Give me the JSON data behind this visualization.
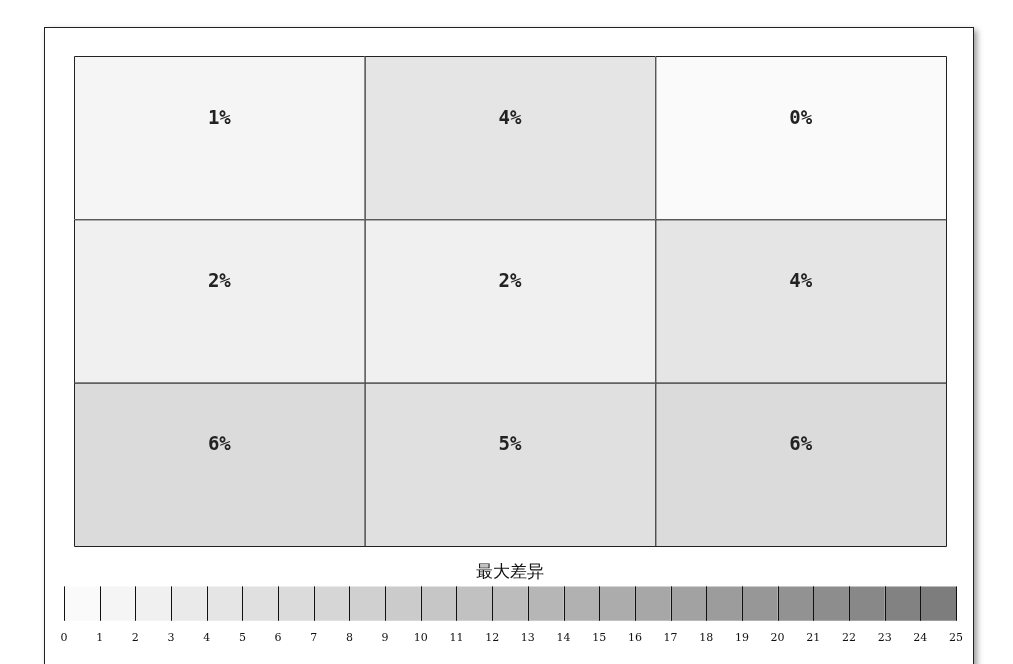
{
  "chart_data": {
    "type": "heatmap",
    "clabel": "最大差异",
    "categories": [
      null,
      null,
      null
    ],
    "y_categories": [
      null,
      null,
      null
    ],
    "cells": [
      [
        1,
        4,
        0
      ],
      [
        2,
        2,
        4
      ],
      [
        6,
        5,
        6
      ]
    ],
    "cell_labels": [
      [
        "1%",
        "4%",
        "0%"
      ],
      [
        "2%",
        "2%",
        "4%"
      ],
      [
        "6%",
        "5%",
        "6%"
      ]
    ],
    "clim": [
      0,
      25
    ],
    "cticks": [
      0,
      1,
      2,
      3,
      4,
      5,
      6,
      7,
      8,
      9,
      10,
      11,
      12,
      13,
      14,
      15,
      16,
      17,
      18,
      19,
      20,
      21,
      22,
      23,
      24,
      25
    ]
  }
}
